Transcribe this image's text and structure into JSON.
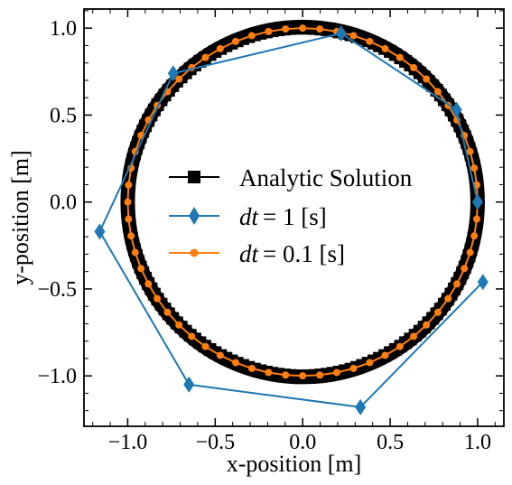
{
  "chart_data": {
    "type": "line",
    "xlabel": "x-position [m]",
    "ylabel": "y-position [m]",
    "xlim": [
      -1.25,
      1.15
    ],
    "ylim": [
      -1.29,
      1.11
    ],
    "x_ticks": [
      -1.0,
      -0.5,
      0.0,
      0.5,
      1.0
    ],
    "y_ticks": [
      -1.0,
      -0.5,
      0.0,
      0.5,
      1.0
    ],
    "x_tick_labels": [
      "−1.0",
      "−0.5",
      "0.0",
      "0.5",
      "1.0"
    ],
    "y_tick_labels": [
      "−1.0",
      "−0.5",
      "0.0",
      "0.5",
      "1.0"
    ],
    "grid": false,
    "legend_position": "center",
    "series": [
      {
        "name": "Analytic Solution",
        "color": "#000000",
        "marker": "square",
        "shape": "circle",
        "center": [
          0.0,
          0.0
        ],
        "radius": 1.0
      },
      {
        "name": "dt = 1 [s]",
        "color": "#1f77b4",
        "marker": "diamond",
        "x": [
          1.0,
          0.88,
          0.22,
          -0.74,
          -1.16,
          -0.65,
          0.33,
          1.03
        ],
        "y": [
          0.0,
          0.53,
          0.97,
          0.74,
          -0.17,
          -1.05,
          -1.18,
          -0.46
        ]
      },
      {
        "name": "dt = 0.1 [s]",
        "color": "#ff7f0e",
        "marker": "circle",
        "shape": "circle",
        "center": [
          0.0,
          0.0
        ],
        "radius": 1.0,
        "num_points": 64
      }
    ]
  },
  "legend": {
    "analytic_label": "Analytic Solution",
    "dt1_prefix": "dt",
    "dt1_suffix": "= 1 [s]",
    "dt01_prefix": "dt",
    "dt01_suffix": "= 0.1 [s]"
  }
}
